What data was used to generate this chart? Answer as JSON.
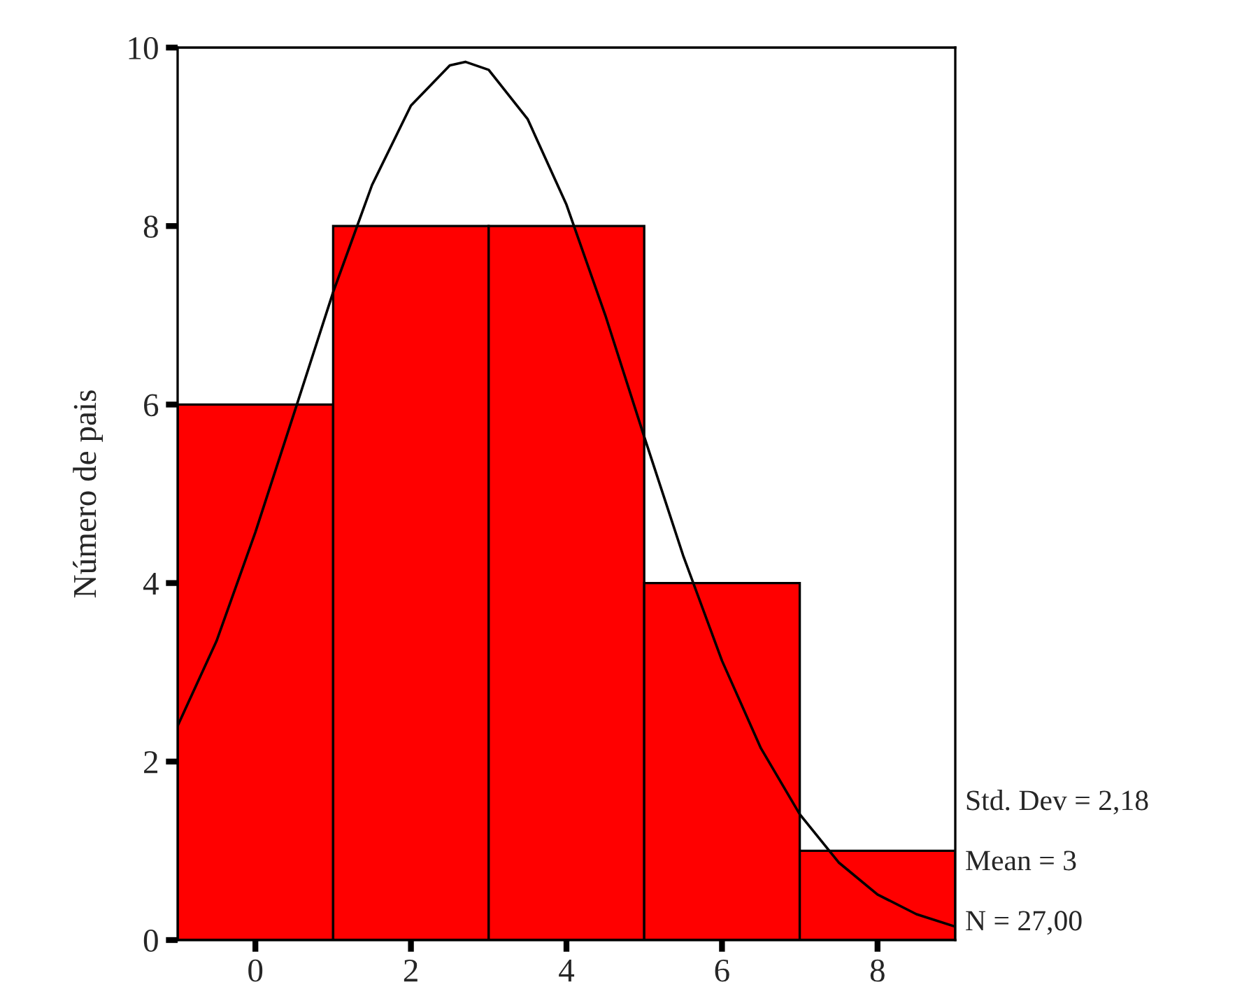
{
  "chart_data": {
    "type": "histogram",
    "ylabel": "Número de pais",
    "bins": [
      -1,
      1,
      3,
      5,
      7,
      9
    ],
    "series": [
      {
        "type": "histogram",
        "color": "#ff0000",
        "values": [
          6,
          8,
          8,
          4,
          1
        ]
      },
      {
        "type": "line",
        "color": "#000000",
        "x": [
          -1,
          -0.5,
          0,
          0.5,
          1,
          1.5,
          2,
          2.5,
          2.7,
          3,
          3.5,
          4,
          4.5,
          5,
          5.5,
          6,
          6.5,
          7,
          7.5,
          8,
          8.5,
          9
        ],
        "values": [
          2.4,
          3.35,
          4.57,
          5.91,
          7.26,
          8.46,
          9.35,
          9.8,
          9.84,
          9.75,
          9.2,
          8.24,
          7.0,
          5.64,
          4.31,
          3.13,
          2.15,
          1.41,
          0.87,
          0.51,
          0.29,
          0.15
        ]
      }
    ],
    "xlim": [
      -1,
      9
    ],
    "xticks": [
      0,
      2,
      4,
      6,
      8
    ],
    "ylim": [
      0,
      10
    ],
    "yticks": [
      0,
      2,
      4,
      6,
      8,
      10
    ],
    "grid": false,
    "legend": false,
    "annotations": [
      "Std. Dev = 2,18",
      "Mean = 3",
      "N = 27,00"
    ]
  }
}
